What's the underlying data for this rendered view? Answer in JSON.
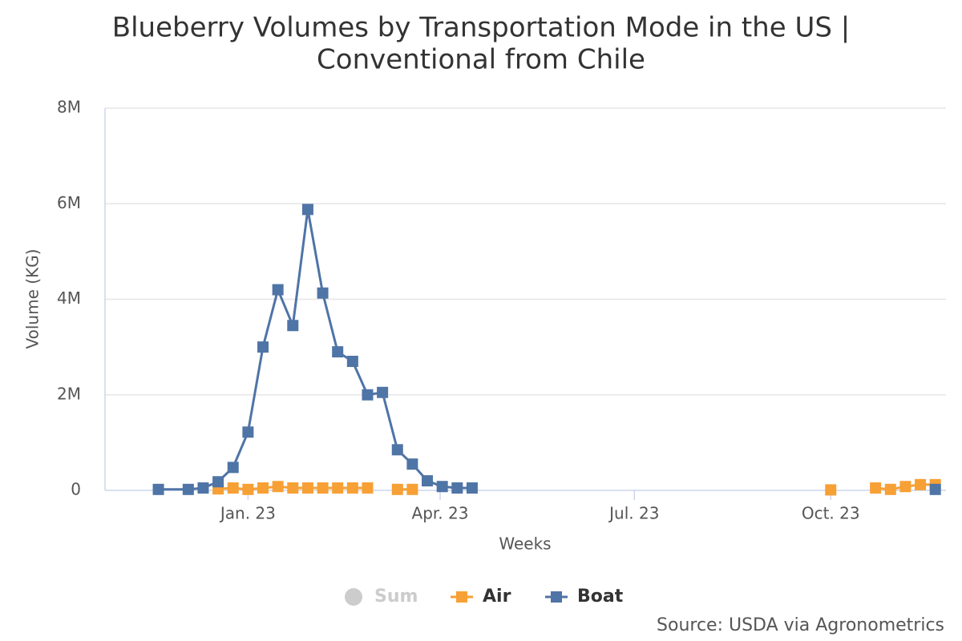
{
  "chart_data": {
    "type": "line",
    "title": "Blueberry Volumes by Transportation Mode in the US |",
    "subtitle": "Conventional from Chile",
    "x_label": "Weeks",
    "y_label": "Volume (KG)",
    "source": "Source: USDA via Agronometrics",
    "xlim": [
      -67,
      327
    ],
    "xticks": [
      {
        "value": 0,
        "label": "Jan. 23"
      },
      {
        "value": 90,
        "label": "Apr. 23"
      },
      {
        "value": 181,
        "label": "Jul. 23"
      },
      {
        "value": 273,
        "label": "Oct. 23"
      }
    ],
    "ylim": [
      0,
      8000000
    ],
    "yticks": [
      {
        "value": 0,
        "label": "0"
      },
      {
        "value": 2000000,
        "label": "2M"
      },
      {
        "value": 4000000,
        "label": "4M"
      },
      {
        "value": 6000000,
        "label": "6M"
      },
      {
        "value": 8000000,
        "label": "8M"
      }
    ],
    "grid": true,
    "series": [
      {
        "name": "Sum",
        "color": "#cccccc",
        "hidden": true,
        "x": [],
        "values": []
      },
      {
        "name": "Air",
        "color": "#f7a035",
        "x": [
          -14,
          -7,
          0,
          7,
          14,
          21,
          28,
          35,
          42,
          49,
          56,
          63,
          70,
          77,
          84,
          273,
          280,
          294,
          301,
          308,
          315,
          322
        ],
        "values": [
          30000,
          50000,
          20000,
          50000,
          80000,
          50000,
          50000,
          50000,
          50000,
          50000,
          50000,
          null,
          20000,
          20000,
          null,
          10000,
          null,
          50000,
          20000,
          80000,
          120000,
          120000
        ]
      },
      {
        "name": "Boat",
        "color": "#4f74a6",
        "x": [
          -42,
          -28,
          -21,
          -14,
          -7,
          0,
          7,
          14,
          21,
          28,
          35,
          42,
          49,
          56,
          63,
          70,
          77,
          84,
          91,
          98,
          105,
          112,
          322
        ],
        "values": [
          20000,
          20000,
          50000,
          180000,
          480000,
          1220000,
          3000000,
          4200000,
          3450000,
          5880000,
          4130000,
          2900000,
          2700000,
          2000000,
          2050000,
          850000,
          550000,
          200000,
          80000,
          50000,
          50000,
          null,
          20000
        ]
      }
    ]
  }
}
